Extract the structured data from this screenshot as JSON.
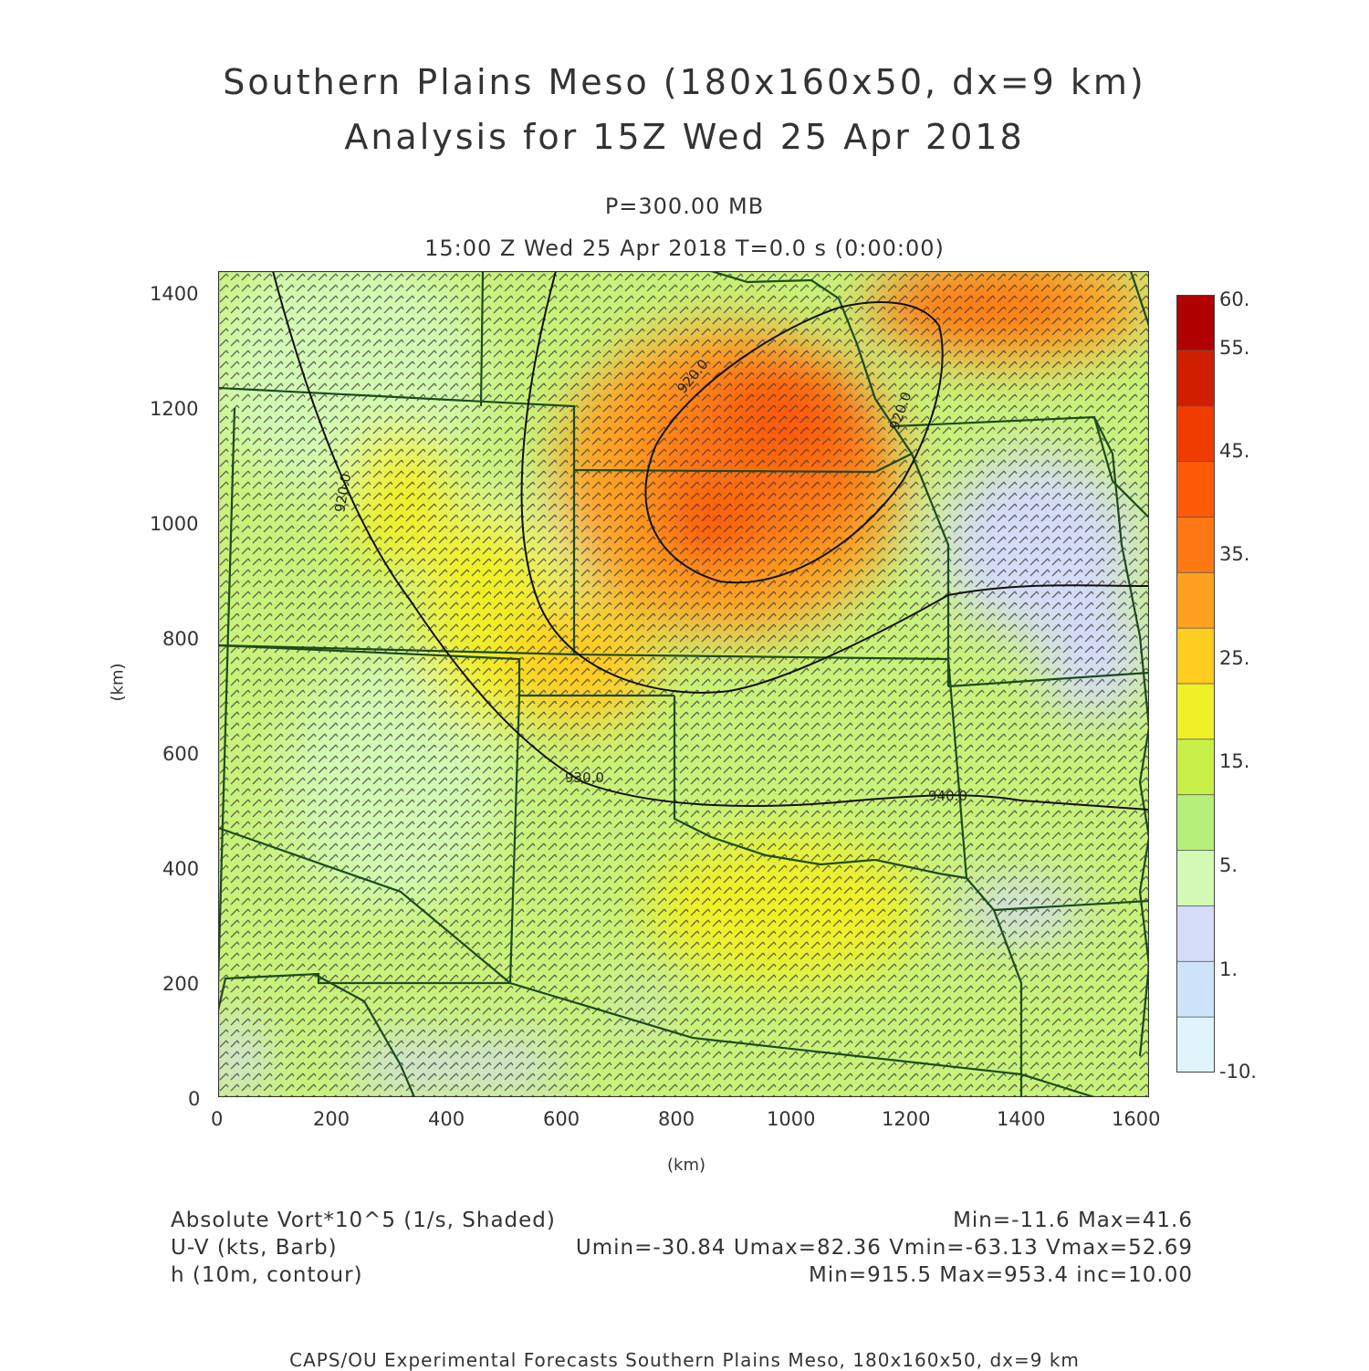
{
  "header": {
    "title_line1": "Southern Plains Meso (180x160x50, dx=9 km)",
    "title_line2": "Analysis for 15Z Wed 25 Apr 2018",
    "level": "P=300.00 MB",
    "valid_time": "15:00 Z Wed 25 Apr 2018    T=0.0 s (0:00:00)"
  },
  "axes": {
    "x_ticks": [
      "0",
      "200",
      "400",
      "600",
      "800",
      "1000",
      "1200",
      "1400",
      "1600"
    ],
    "y_ticks": [
      "0",
      "200",
      "400",
      "600",
      "800",
      "1000",
      "1200",
      "1400"
    ],
    "x_unit": "(km)",
    "y_unit": "(km)",
    "x_range": [
      0,
      1620
    ],
    "y_range": [
      0,
      1440
    ]
  },
  "colorbar": {
    "labels": [
      "60.",
      "55.",
      "45.",
      "35.",
      "25.",
      "15.",
      "5.",
      "1.",
      "-10."
    ],
    "colors": [
      "#b00000",
      "#d01e00",
      "#f03c00",
      "#ff5a08",
      "#ff7814",
      "#ffa020",
      "#ffcc20",
      "#f0f028",
      "#c8f048",
      "#b4f07a",
      "#d2fab4",
      "#d4dcf8",
      "#cde3fa",
      "#e0f4fc"
    ]
  },
  "contours": {
    "labels": [
      "920.0",
      "930.0",
      "940.0",
      "920.0",
      "920.0"
    ]
  },
  "info": {
    "field1_name": "Absolute Vort*10^5 (1/s, Shaded)",
    "field1_stats": "Min=-11.6  Max=41.6",
    "field2_name": "U-V (kts, Barb)",
    "field2_stats": "Umin=-30.84  Umax=82.36  Vmin=-63.13  Vmax=52.69",
    "field3_name": "h (10m, contour)",
    "field3_stats": "Min=915.5  Max=953.4  inc=10.00"
  },
  "footer": "CAPS/OU Experimental Forecasts  Southern Plains Meso, 180x160x50, dx=9 km"
}
